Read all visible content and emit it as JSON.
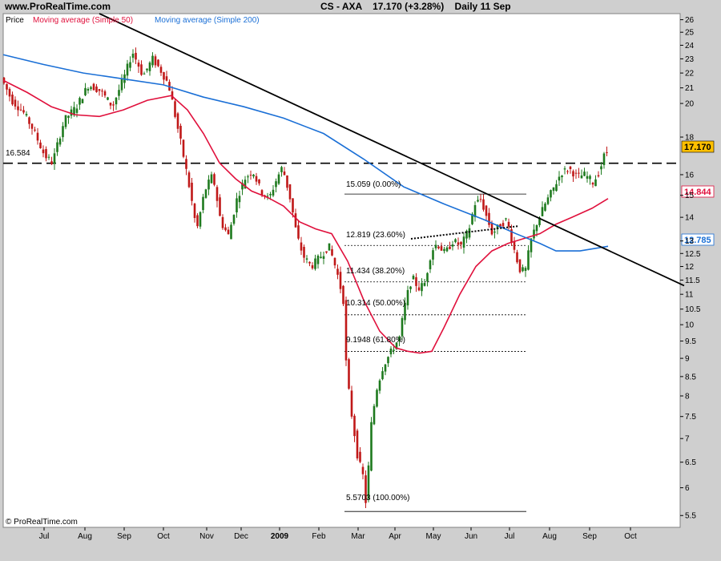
{
  "header": {
    "site": "www.ProRealTime.com",
    "instrument": "CS - AXA",
    "last": "17.170 (+3.28%)",
    "period": "Daily",
    "date": "11 Sep"
  },
  "legend": {
    "price": "Price",
    "ma50": "Moving average (Simple 50)",
    "ma200": "Moving average (Simple 200)"
  },
  "footer": {
    "copyright": "© ProRealTime.com"
  },
  "colors": {
    "background": "#ffffff",
    "bull": "#1e7a1e",
    "bear": "#c01818",
    "ma50": "#e0103c",
    "ma200": "#1a6fd6",
    "trendline": "#000000",
    "last_badge": "#ffc000"
  },
  "chart_data": {
    "type": "candlestick",
    "x_ticks": [
      "Jul",
      "Aug",
      "Sep",
      "Oct",
      "Nov",
      "Dec",
      "2009",
      "Feb",
      "Mar",
      "Apr",
      "May",
      "Jun",
      "Jul",
      "Aug",
      "Sep",
      "Oct"
    ],
    "y_ticks": [
      5.5,
      6,
      6.5,
      7,
      7.5,
      8,
      8.5,
      9,
      9.5,
      10,
      10.5,
      11,
      11.5,
      12,
      12.5,
      13,
      14,
      15,
      16,
      18,
      20,
      21,
      22,
      23,
      24,
      25,
      26
    ],
    "y_scale": "log",
    "ylim": [
      5.3,
      26.5
    ],
    "price_path": [
      [
        0,
        21.8
      ],
      [
        14,
        20.2
      ],
      [
        28,
        19.5
      ],
      [
        40,
        18.5
      ],
      [
        55,
        17.0
      ],
      [
        65,
        16.6
      ],
      [
        80,
        19.0
      ],
      [
        95,
        19.8
      ],
      [
        110,
        21.2
      ],
      [
        125,
        20.8
      ],
      [
        140,
        19.8
      ],
      [
        155,
        21.8
      ],
      [
        165,
        23.5
      ],
      [
        178,
        21.8
      ],
      [
        190,
        23.0
      ],
      [
        200,
        22.2
      ],
      [
        210,
        21.2
      ],
      [
        220,
        18.8
      ],
      [
        232,
        16.2
      ],
      [
        245,
        13.4
      ],
      [
        255,
        15.2
      ],
      [
        265,
        16.0
      ],
      [
        275,
        13.8
      ],
      [
        285,
        13.2
      ],
      [
        295,
        14.8
      ],
      [
        305,
        15.8
      ],
      [
        315,
        16.2
      ],
      [
        325,
        15.2
      ],
      [
        335,
        14.8
      ],
      [
        345,
        15.8
      ],
      [
        352,
        16.4
      ],
      [
        362,
        14.8
      ],
      [
        370,
        13.2
      ],
      [
        378,
        12.4
      ],
      [
        388,
        12.0
      ],
      [
        400,
        12.4
      ],
      [
        410,
        12.8
      ],
      [
        420,
        11.8
      ],
      [
        428,
        10.8
      ],
      [
        432,
        8.6
      ],
      [
        438,
        7.6
      ],
      [
        446,
        6.6
      ],
      [
        453,
        6.2
      ],
      [
        457,
        5.6
      ],
      [
        462,
        7.2
      ],
      [
        470,
        8.2
      ],
      [
        478,
        8.8
      ],
      [
        488,
        9.2
      ],
      [
        498,
        9.6
      ],
      [
        506,
        10.8
      ],
      [
        514,
        11.6
      ],
      [
        522,
        11.2
      ],
      [
        530,
        11.4
      ],
      [
        538,
        12.6
      ],
      [
        545,
        12.9
      ],
      [
        555,
        12.5
      ],
      [
        565,
        13.0
      ],
      [
        575,
        12.8
      ],
      [
        585,
        13.5
      ],
      [
        592,
        14.6
      ],
      [
        600,
        14.8
      ],
      [
        606,
        14.1
      ],
      [
        614,
        13.3
      ],
      [
        622,
        13.6
      ],
      [
        632,
        13.9
      ],
      [
        640,
        12.8
      ],
      [
        648,
        11.9
      ],
      [
        655,
        11.8
      ],
      [
        662,
        13.0
      ],
      [
        670,
        13.8
      ],
      [
        680,
        14.6
      ],
      [
        690,
        15.3
      ],
      [
        700,
        16.1
      ],
      [
        710,
        16.3
      ],
      [
        720,
        15.9
      ],
      [
        730,
        16.0
      ],
      [
        740,
        15.6
      ],
      [
        748,
        16.2
      ],
      [
        755,
        17.17
      ]
    ],
    "series": [
      {
        "name": "Moving average (Simple 50)",
        "path": [
          [
            0,
            21.5
          ],
          [
            30,
            20.7
          ],
          [
            60,
            19.8
          ],
          [
            90,
            19.3
          ],
          [
            120,
            19.2
          ],
          [
            150,
            19.6
          ],
          [
            180,
            20.2
          ],
          [
            210,
            20.5
          ],
          [
            230,
            19.6
          ],
          [
            250,
            18.2
          ],
          [
            270,
            16.6
          ],
          [
            290,
            15.8
          ],
          [
            310,
            15.2
          ],
          [
            330,
            14.9
          ],
          [
            350,
            14.5
          ],
          [
            370,
            13.8
          ],
          [
            390,
            13.5
          ],
          [
            410,
            13.3
          ],
          [
            430,
            12.2
          ],
          [
            450,
            10.8
          ],
          [
            470,
            9.8
          ],
          [
            490,
            9.3
          ],
          [
            505,
            9.2
          ],
          [
            520,
            9.15
          ],
          [
            535,
            9.2
          ],
          [
            550,
            9.9
          ],
          [
            570,
            11.0
          ],
          [
            590,
            12.0
          ],
          [
            610,
            12.6
          ],
          [
            630,
            12.9
          ],
          [
            650,
            13.1
          ],
          [
            670,
            13.3
          ],
          [
            690,
            13.7
          ],
          [
            710,
            14.0
          ],
          [
            735,
            14.4
          ],
          [
            755,
            14.844
          ]
        ]
      },
      {
        "name": "Moving average (Simple 200)",
        "path": [
          [
            0,
            23.3
          ],
          [
            50,
            22.6
          ],
          [
            100,
            22.0
          ],
          [
            150,
            21.6
          ],
          [
            200,
            21.2
          ],
          [
            250,
            20.4
          ],
          [
            300,
            19.8
          ],
          [
            350,
            19.1
          ],
          [
            400,
            18.2
          ],
          [
            450,
            16.8
          ],
          [
            500,
            15.4
          ],
          [
            550,
            14.6
          ],
          [
            600,
            13.9
          ],
          [
            640,
            13.3
          ],
          [
            670,
            12.9
          ],
          [
            690,
            12.6
          ],
          [
            720,
            12.6
          ],
          [
            755,
            12.785
          ]
        ]
      }
    ],
    "trendline": [
      [
        120,
        26.5
      ],
      [
        850,
        11.3
      ]
    ],
    "support_line": {
      "value": 16.584,
      "label": "16.584"
    },
    "fibonacci": [
      {
        "label": "15.059 (0.00%)",
        "value": 15.059
      },
      {
        "label": "12.819 (23.60%)",
        "value": 12.819
      },
      {
        "label": "11.434 (38.20%)",
        "value": 11.434
      },
      {
        "label": "10.314 (50.00%)",
        "value": 10.314
      },
      {
        "label": "9.1948 (61.80%)",
        "value": 9.1948
      },
      {
        "label": "5.5703 (100.00%)",
        "value": 5.5703
      }
    ],
    "last_values": {
      "price": "17.170",
      "ma50": "14.844",
      "ma200": "12.785"
    }
  }
}
